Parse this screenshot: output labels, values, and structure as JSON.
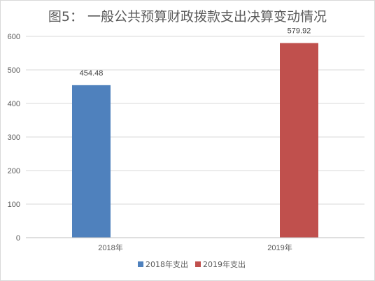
{
  "chart_data": {
    "type": "bar",
    "title": "图5：   一般公共预算财政拨款支出决算变动情况",
    "categories": [
      "2018年",
      "2019年"
    ],
    "series": [
      {
        "name": "2018年支出",
        "color": "#4f81bd",
        "values": [
          454.48,
          null
        ]
      },
      {
        "name": "2019年支出",
        "color": "#c0504d",
        "values": [
          null,
          579.92
        ]
      }
    ],
    "data_labels": [
      "454.48",
      "579.92"
    ],
    "ylim": [
      0,
      600
    ],
    "yticks": [
      0,
      100,
      200,
      300,
      400,
      500,
      600
    ],
    "ytick_labels": [
      "0",
      "100",
      "200",
      "300",
      "400",
      "500",
      "600"
    ],
    "grid": true,
    "legend": "bottom",
    "xlabel": "",
    "ylabel": ""
  }
}
